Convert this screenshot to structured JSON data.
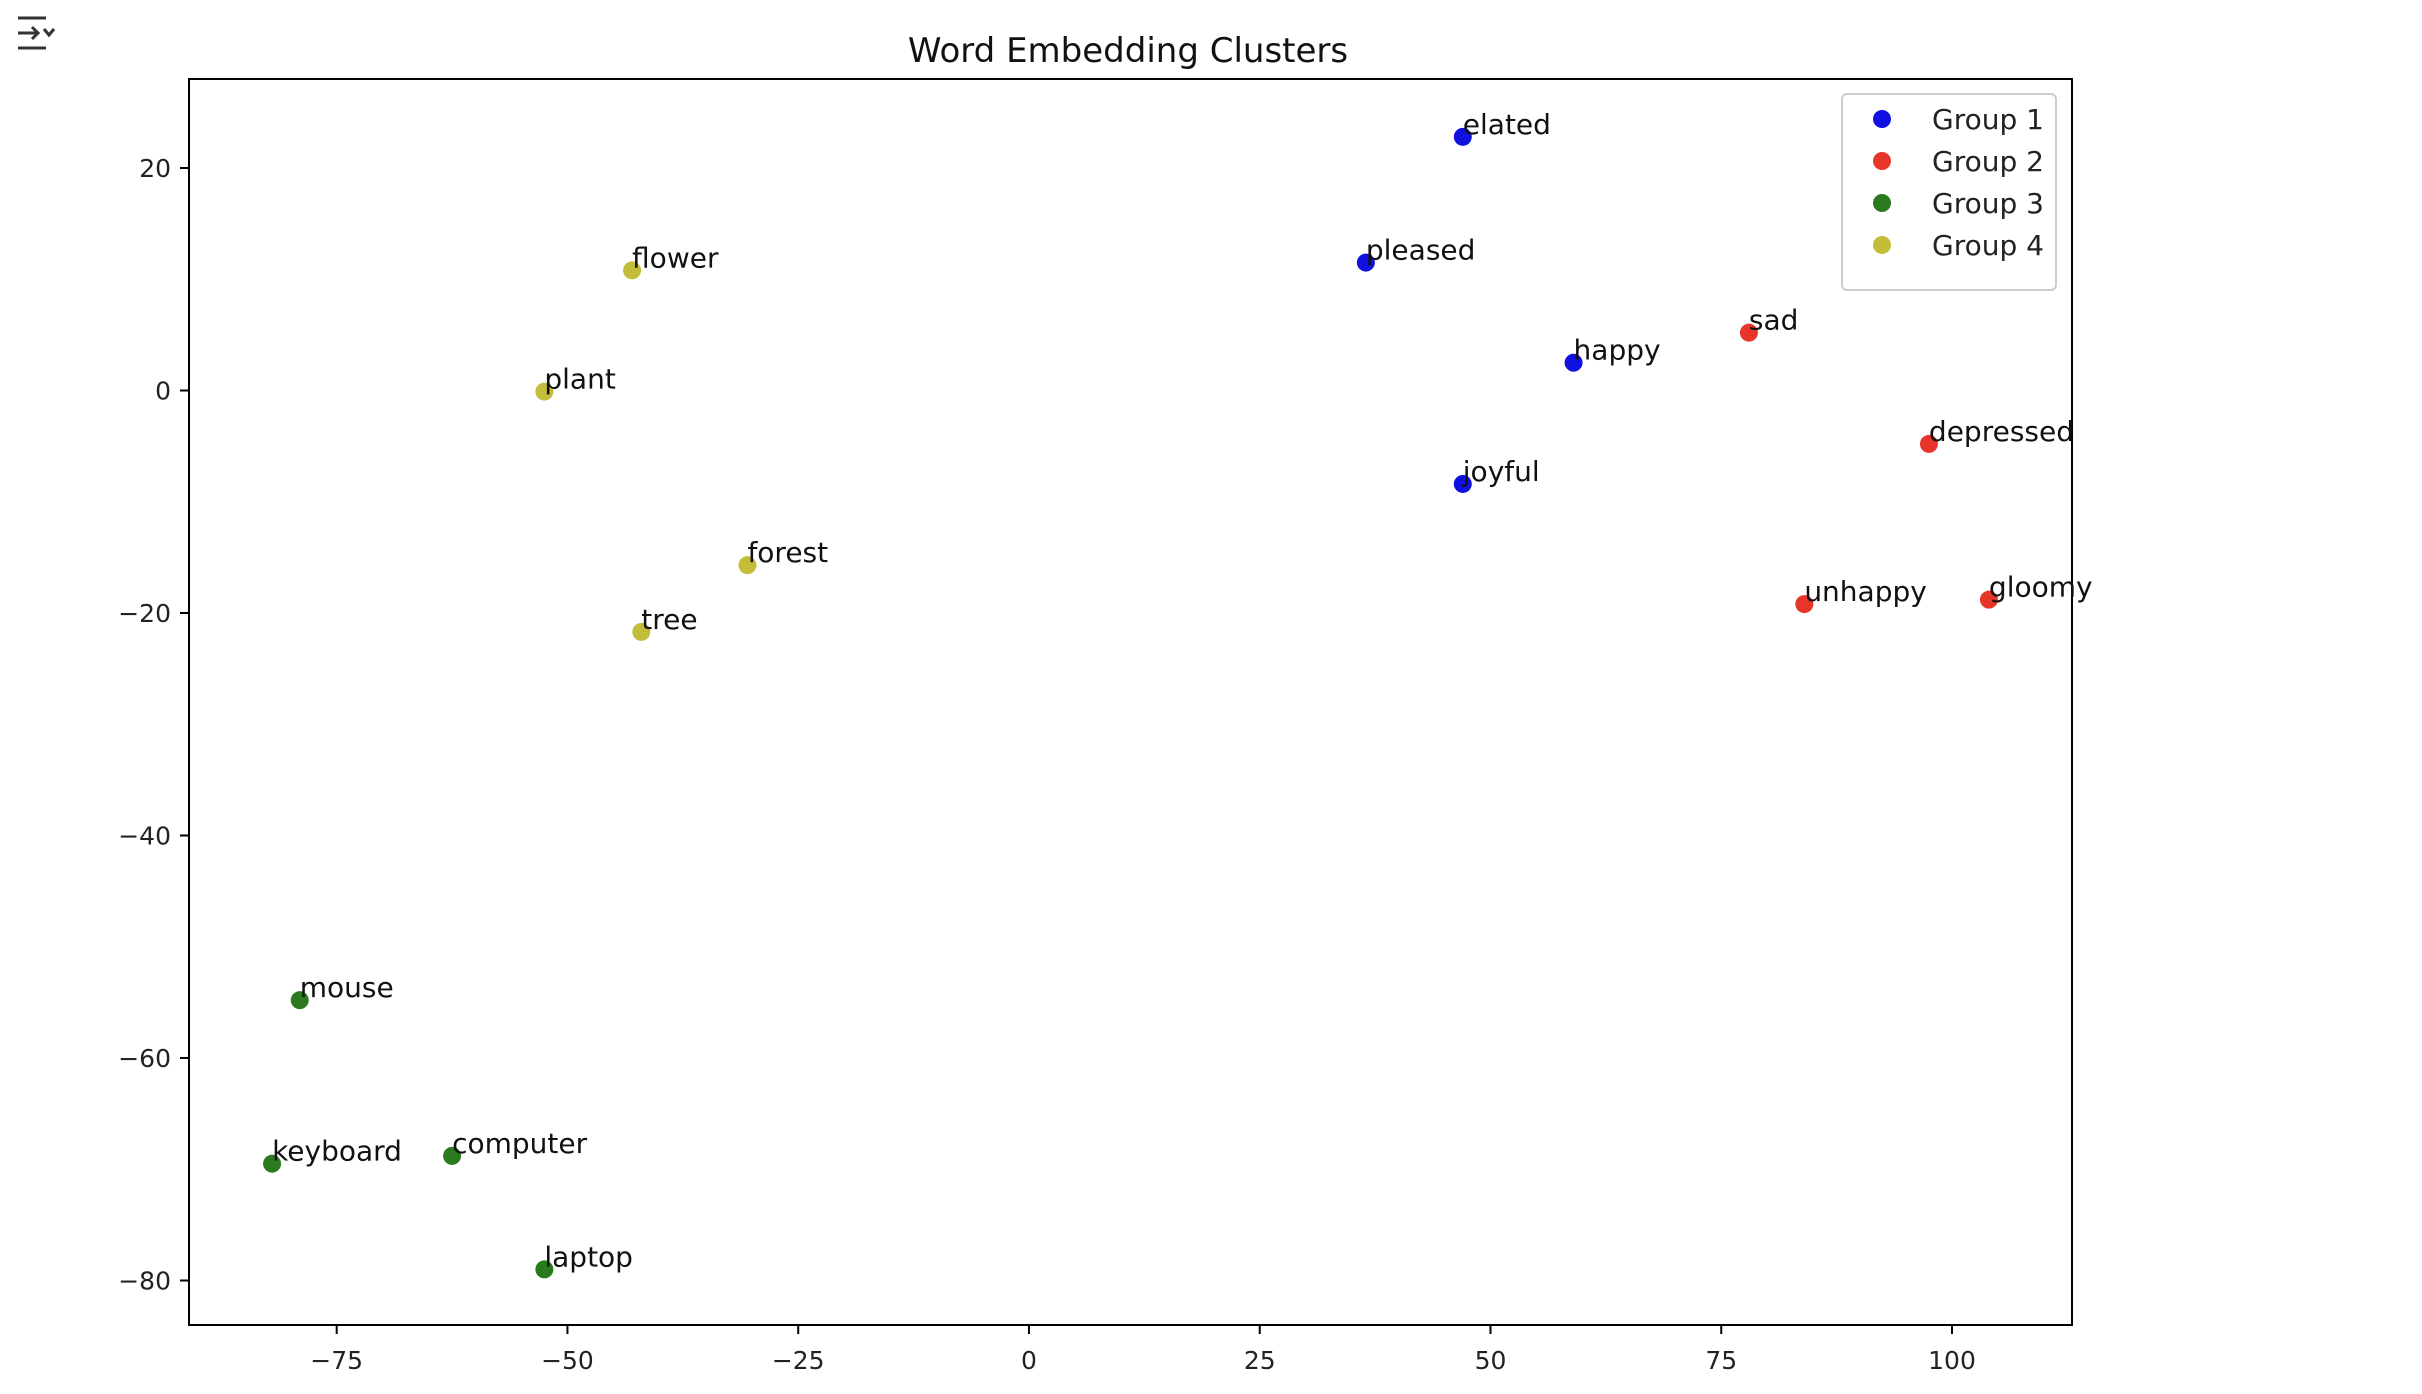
{
  "toolbar": {
    "output_toggle_icon": "output-toggle-icon"
  },
  "chart_data": {
    "type": "scatter",
    "title": "Word Embedding Clusters",
    "xlabel": "",
    "ylabel": "",
    "xlim": [
      -91,
      113
    ],
    "ylim": [
      -84,
      28
    ],
    "xticks": [
      -75,
      -50,
      -25,
      0,
      25,
      50,
      75,
      100
    ],
    "yticks": [
      20,
      0,
      -20,
      -40,
      -60,
      -80
    ],
    "xtick_labels": [
      "−75",
      "−50",
      "−25",
      "0",
      "25",
      "50",
      "75",
      "100"
    ],
    "ytick_labels": [
      "20",
      "0",
      "−20",
      "−40",
      "−60",
      "−80"
    ],
    "grid": false,
    "legend_position": "top-right",
    "series": [
      {
        "name": "Group 1",
        "color": "#1010e0",
        "points": [
          {
            "label": "elated",
            "x": 47,
            "y": 22.8
          },
          {
            "label": "pleased",
            "x": 36.5,
            "y": 11.5
          },
          {
            "label": "happy",
            "x": 59,
            "y": 2.5
          },
          {
            "label": "joyful",
            "x": 47,
            "y": -8.4
          }
        ]
      },
      {
        "name": "Group 2",
        "color": "#e8352a",
        "points": [
          {
            "label": "sad",
            "x": 78,
            "y": 5.2
          },
          {
            "label": "depressed",
            "x": 97.5,
            "y": -4.8
          },
          {
            "label": "unhappy",
            "x": 84,
            "y": -19.2
          },
          {
            "label": "gloomy",
            "x": 104,
            "y": -18.8
          }
        ]
      },
      {
        "name": "Group 3",
        "color": "#2c7a1f",
        "points": [
          {
            "label": "mouse",
            "x": -79,
            "y": -54.8
          },
          {
            "label": "keyboard",
            "x": -82,
            "y": -69.5
          },
          {
            "label": "computer",
            "x": -62.5,
            "y": -68.8
          },
          {
            "label": "laptop",
            "x": -52.5,
            "y": -79
          }
        ]
      },
      {
        "name": "Group 4",
        "color": "#c4bd3a",
        "points": [
          {
            "label": "flower",
            "x": -43,
            "y": 10.8
          },
          {
            "label": "plant",
            "x": -52.5,
            "y": -0.1
          },
          {
            "label": "forest",
            "x": -30.5,
            "y": -15.7
          },
          {
            "label": "tree",
            "x": -42,
            "y": -21.7
          }
        ]
      }
    ]
  }
}
